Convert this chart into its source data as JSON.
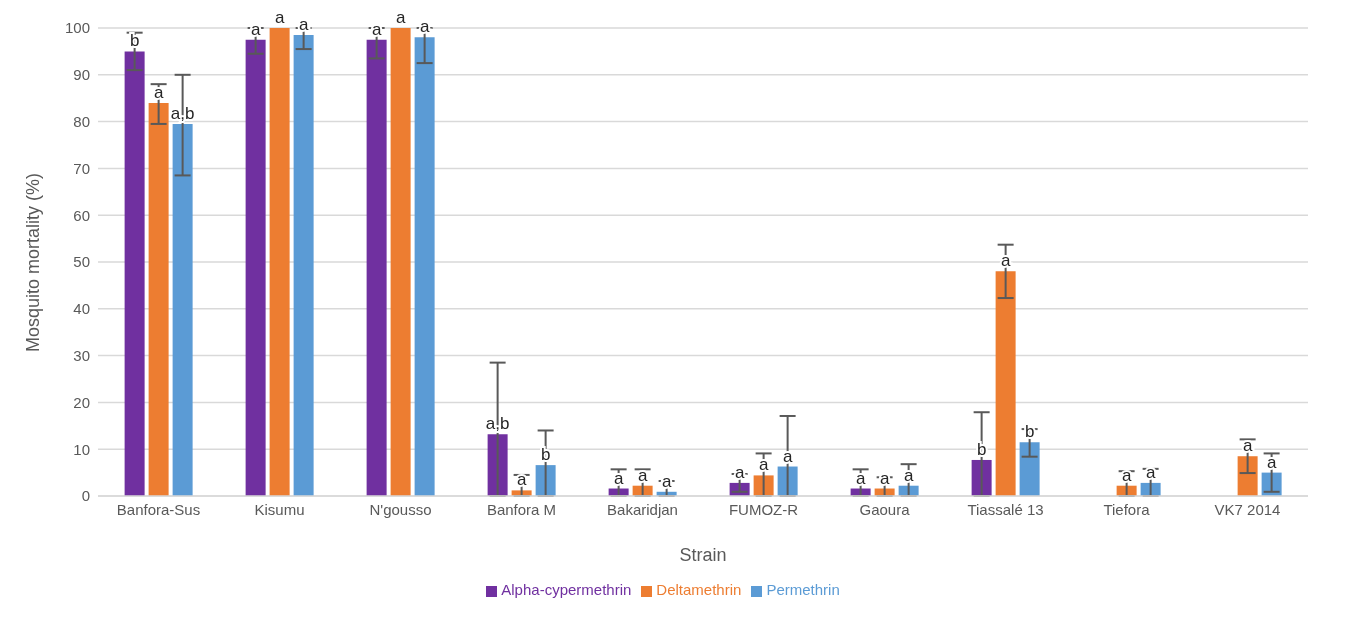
{
  "chart_data": {
    "type": "bar",
    "xlabel": "Strain",
    "ylabel": "Mosquito mortality (%)",
    "categories": [
      "Banfora-Sus",
      "Kisumu",
      "N'gousso",
      "Banfora M",
      "Bakaridjan",
      "FUMOZ-R",
      "Gaoura",
      "Tiassalé 13",
      "Tiefora",
      "VK7 2014"
    ],
    "series": [
      {
        "name": "Alpha-cypermethrin",
        "color": "#7030a0",
        "values": [
          95,
          97.5,
          97.5,
          13.2,
          1.6,
          2.8,
          1.6,
          7.7,
          null,
          null
        ],
        "errors": [
          [
            91,
            99
          ],
          [
            94.5,
            100
          ],
          [
            93.5,
            100
          ],
          [
            0,
            28.5
          ],
          [
            0,
            5.7
          ],
          [
            0.9,
            4.7
          ],
          [
            0,
            5.7
          ],
          [
            0,
            17.9
          ],
          null,
          null
        ],
        "value_labels": [
          "b",
          "a",
          "a",
          "a,b",
          "a",
          "a",
          "a",
          "b",
          null,
          null
        ]
      },
      {
        "name": "Deltamethrin",
        "color": "#ed7d31",
        "values": [
          84,
          100,
          100,
          1.2,
          2.2,
          4.4,
          1.6,
          48,
          2.2,
          8.5
        ],
        "errors": [
          [
            79.5,
            88
          ],
          null,
          null,
          [
            0,
            4.5
          ],
          [
            0,
            5.7
          ],
          [
            0,
            9.1
          ],
          [
            0,
            4
          ],
          [
            42.3,
            53.7
          ],
          [
            0,
            5.3
          ],
          [
            4.9,
            12.1
          ]
        ],
        "value_labels": [
          "a",
          "a",
          "a",
          "a",
          "a",
          "a",
          "a",
          "a",
          "a",
          "a"
        ]
      },
      {
        "name": "Permethrin",
        "color": "#5b9bd5",
        "values": [
          79.5,
          98.5,
          98,
          6.6,
          0.9,
          6.3,
          2.2,
          11.5,
          2.8,
          5
        ],
        "errors": [
          [
            68.5,
            90
          ],
          [
            95.5,
            100
          ],
          [
            92.5,
            100
          ],
          [
            0,
            14
          ],
          [
            0,
            3.2
          ],
          [
            0,
            17.1
          ],
          [
            0,
            6.8
          ],
          [
            8.4,
            14.3
          ],
          [
            0,
            5.8
          ],
          [
            0.9,
            9.1
          ]
        ],
        "value_labels": [
          "a,b",
          "a",
          "a",
          "b",
          "a",
          "a",
          "a",
          "b",
          "a",
          "a"
        ]
      }
    ],
    "ylim": [
      0,
      100
    ],
    "yticks": [
      0,
      10,
      20,
      30,
      40,
      50,
      60,
      70,
      80,
      90,
      100
    ],
    "grid": "y",
    "legend": "bottom"
  }
}
